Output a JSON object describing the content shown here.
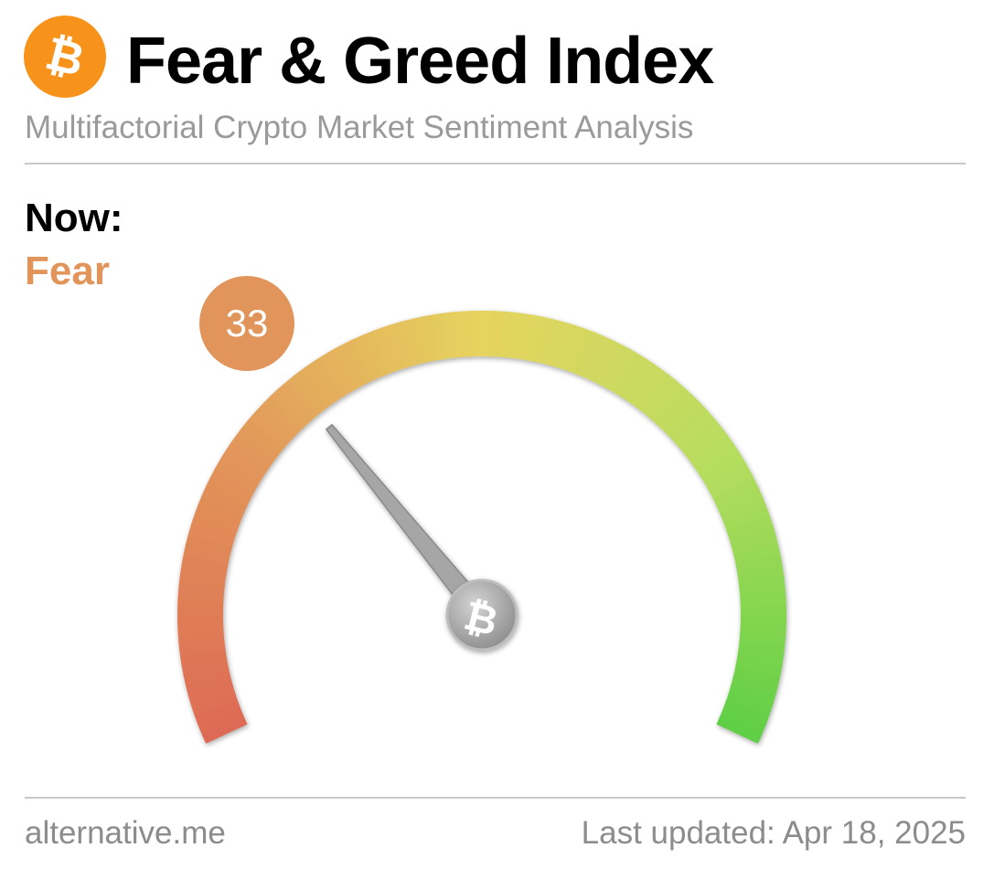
{
  "header": {
    "title": "Fear & Greed Index",
    "subtitle": "Multifactorial Crypto Market Sentiment Analysis",
    "logo_icon": "bitcoin-logo-icon"
  },
  "now": {
    "label": "Now:",
    "classification": "Fear",
    "value": "33"
  },
  "gauge": {
    "min": 0,
    "max": 100,
    "value": 33,
    "hub_icon": "bitcoin-icon",
    "needle_color": "#a6a6a6"
  },
  "colors": {
    "brand_orange": "#f7931a",
    "fear": "#e2955a",
    "extreme_fear": "#dd6b55",
    "neutral": "#e6d45e",
    "greed": "#b7dd5e",
    "extreme_greed": "#5fcf45"
  },
  "footer": {
    "source": "alternative.me",
    "last_updated": "Last updated: Apr 18, 2025"
  }
}
